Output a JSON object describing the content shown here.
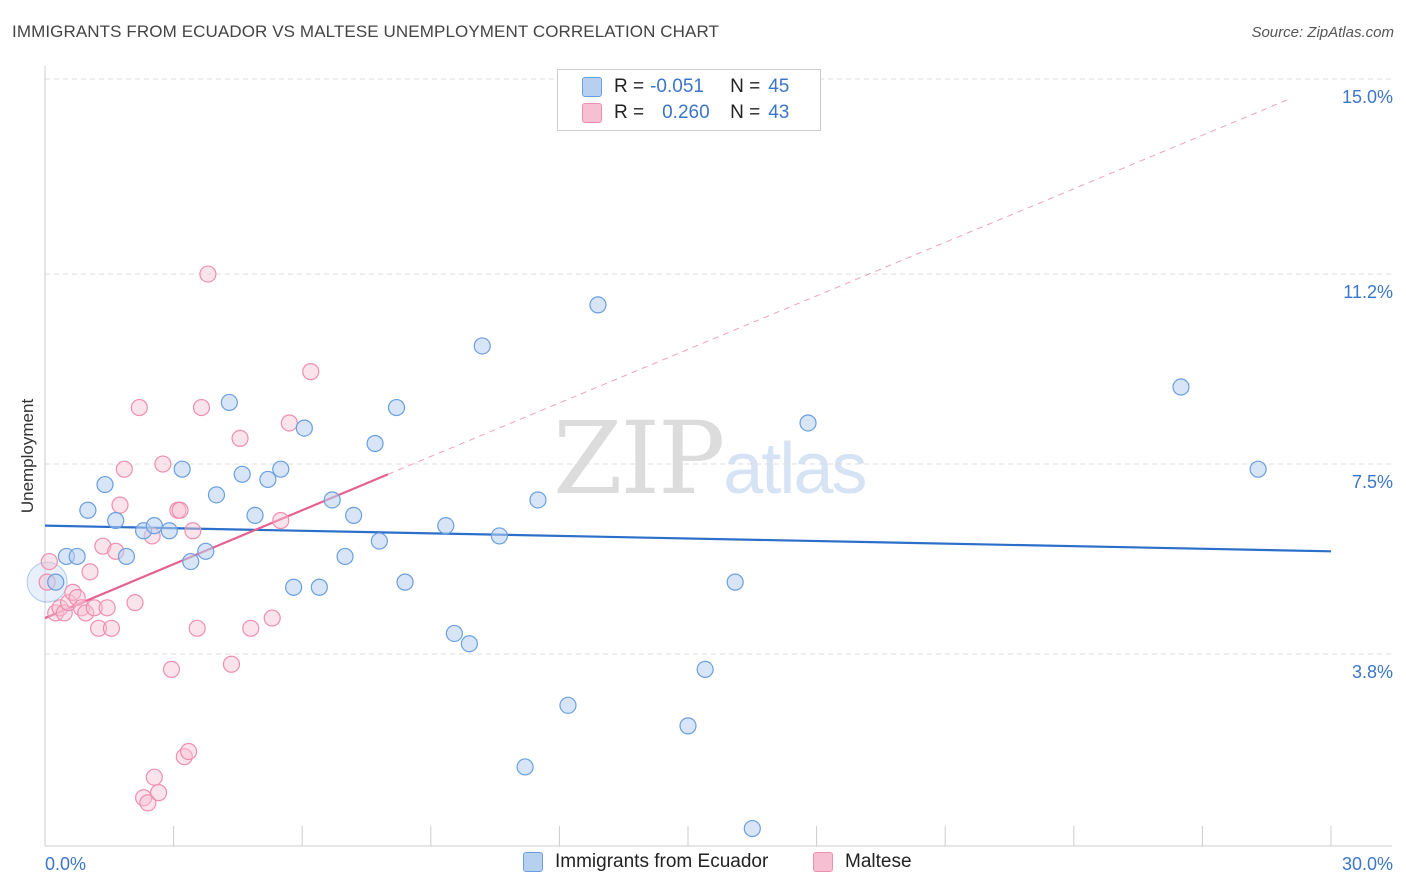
{
  "header": {
    "title": "IMMIGRANTS FROM ECUADOR VS MALTESE UNEMPLOYMENT CORRELATION CHART",
    "source": "Source: ZipAtlas.com"
  },
  "legend_top": {
    "rows": [
      {
        "r_label": "R =",
        "r_value": "-0.051",
        "n_label": "N =",
        "n_value": "45"
      },
      {
        "r_label": "R =",
        "r_value": "0.260",
        "n_label": "N =",
        "n_value": "43"
      }
    ]
  },
  "legend_bottom": {
    "items": [
      {
        "label": "Immigrants from Ecuador"
      },
      {
        "label": "Maltese"
      }
    ]
  },
  "watermark": {
    "zip": "ZIP",
    "atlas": "atlas"
  },
  "colors": {
    "blue_fill": "#b8d0f0",
    "blue_stroke": "#6a9fe0",
    "blue_line": "#2b6fca",
    "pink_fill": "#f7c0d2",
    "pink_stroke": "#ee8fae",
    "pink_line": "#e5628e",
    "axis_label": "#3c76c9",
    "grid": "#dddddd"
  },
  "chart_data": {
    "type": "scatter",
    "title": "IMMIGRANTS FROM ECUADOR VS MALTESE UNEMPLOYMENT CORRELATION CHART",
    "xlabel": "",
    "ylabel": "Unemployment",
    "xlim": [
      0,
      30
    ],
    "ylim": [
      0,
      15.5
    ],
    "x_tick_labels": [
      "0.0%",
      "30.0%"
    ],
    "y_ticks": [
      3.8,
      7.5,
      11.2,
      15.0
    ],
    "y_tick_labels": [
      "3.8%",
      "7.5%",
      "11.2%",
      "15.0%"
    ],
    "grid": true,
    "legend_position": "top-center",
    "series": [
      {
        "name": "Immigrants from Ecuador",
        "color": "blue",
        "trend": {
          "x": [
            0,
            30
          ],
          "y": [
            6.3,
            5.8
          ],
          "style": "solid"
        },
        "points": [
          [
            0.25,
            5.2
          ],
          [
            0.5,
            5.7
          ],
          [
            0.75,
            5.7
          ],
          [
            1.0,
            6.6
          ],
          [
            1.4,
            7.1
          ],
          [
            1.65,
            6.4
          ],
          [
            1.9,
            5.7
          ],
          [
            2.3,
            6.2
          ],
          [
            2.55,
            6.3
          ],
          [
            2.9,
            6.2
          ],
          [
            3.2,
            7.4
          ],
          [
            3.4,
            5.6
          ],
          [
            3.75,
            5.8
          ],
          [
            4.0,
            6.9
          ],
          [
            4.3,
            8.7
          ],
          [
            4.6,
            7.3
          ],
          [
            4.9,
            6.5
          ],
          [
            5.2,
            7.2
          ],
          [
            5.5,
            7.4
          ],
          [
            5.8,
            5.1
          ],
          [
            6.05,
            8.2
          ],
          [
            6.4,
            5.1
          ],
          [
            6.7,
            6.8
          ],
          [
            7.0,
            5.7
          ],
          [
            7.2,
            6.5
          ],
          [
            7.7,
            7.9
          ],
          [
            7.8,
            6.0
          ],
          [
            8.2,
            8.6
          ],
          [
            8.4,
            5.2
          ],
          [
            9.35,
            6.3
          ],
          [
            9.55,
            4.2
          ],
          [
            9.9,
            4.0
          ],
          [
            10.2,
            9.8
          ],
          [
            10.6,
            6.1
          ],
          [
            11.2,
            1.6
          ],
          [
            11.5,
            6.8
          ],
          [
            12.2,
            2.8
          ],
          [
            12.9,
            10.6
          ],
          [
            15.0,
            2.4
          ],
          [
            15.4,
            3.5
          ],
          [
            16.1,
            5.2
          ],
          [
            16.5,
            0.4
          ],
          [
            17.8,
            8.3
          ],
          [
            26.5,
            9.0
          ],
          [
            28.3,
            7.4
          ]
        ]
      },
      {
        "name": "Maltese",
        "color": "pink",
        "trend": {
          "x": [
            0,
            8.0
          ],
          "y": [
            4.5,
            7.3
          ],
          "style": "solid",
          "extended": {
            "x": [
              8.0,
              29.0
            ],
            "y": [
              7.3,
              14.6
            ],
            "style": "dashed"
          }
        },
        "points": [
          [
            0.1,
            5.6
          ],
          [
            0.25,
            4.6
          ],
          [
            0.35,
            4.7
          ],
          [
            0.45,
            4.6
          ],
          [
            0.55,
            4.8
          ],
          [
            0.65,
            5.0
          ],
          [
            0.75,
            4.9
          ],
          [
            0.85,
            4.7
          ],
          [
            0.95,
            4.6
          ],
          [
            1.05,
            5.4
          ],
          [
            1.15,
            4.7
          ],
          [
            1.25,
            4.3
          ],
          [
            1.35,
            5.9
          ],
          [
            1.45,
            4.7
          ],
          [
            1.55,
            4.3
          ],
          [
            1.65,
            5.8
          ],
          [
            1.75,
            6.7
          ],
          [
            1.85,
            7.4
          ],
          [
            2.1,
            4.8
          ],
          [
            2.2,
            8.6
          ],
          [
            2.3,
            1.0
          ],
          [
            2.4,
            0.9
          ],
          [
            2.5,
            6.1
          ],
          [
            2.55,
            1.4
          ],
          [
            2.65,
            1.1
          ],
          [
            2.75,
            7.5
          ],
          [
            2.95,
            3.5
          ],
          [
            3.1,
            6.6
          ],
          [
            3.15,
            6.6
          ],
          [
            3.25,
            1.8
          ],
          [
            3.35,
            1.9
          ],
          [
            3.45,
            6.2
          ],
          [
            3.55,
            4.3
          ],
          [
            3.65,
            8.6
          ],
          [
            3.8,
            11.2
          ],
          [
            4.35,
            3.6
          ],
          [
            4.55,
            8.0
          ],
          [
            4.8,
            4.3
          ],
          [
            5.3,
            4.5
          ],
          [
            5.5,
            6.4
          ],
          [
            5.7,
            8.3
          ],
          [
            6.2,
            9.3
          ],
          [
            0.05,
            5.2
          ]
        ]
      }
    ]
  }
}
